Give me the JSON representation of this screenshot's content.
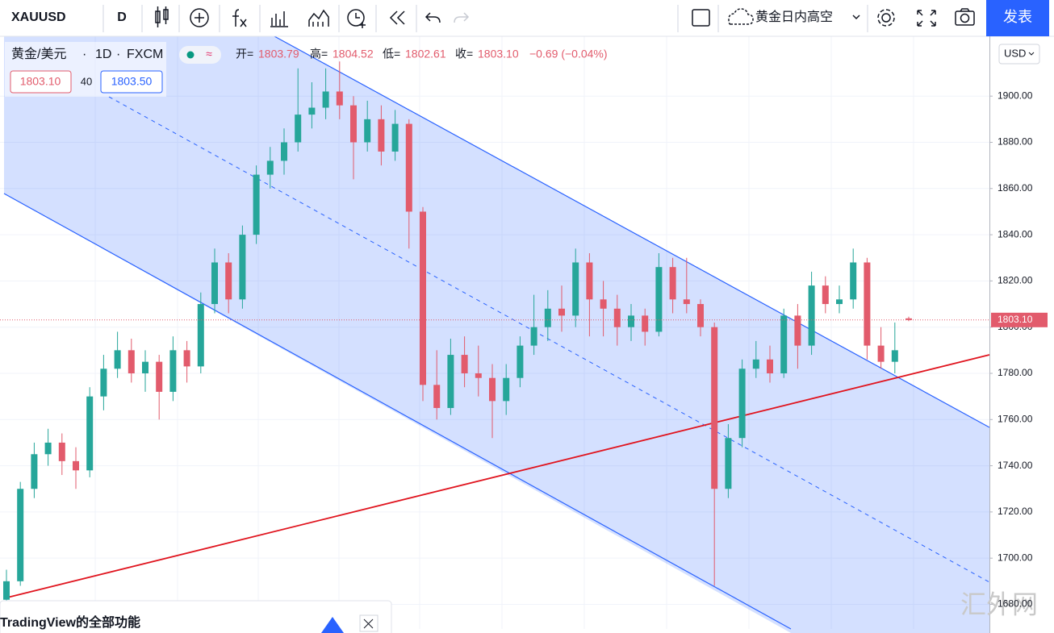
{
  "toolbar": {
    "symbol": "XAUUSD",
    "interval": "D",
    "layout_name": "黄金日内高空",
    "publish": "发表"
  },
  "legend": {
    "name": "黄金/美元",
    "interval": "1D",
    "source": "FXCM",
    "open_label": "开=",
    "open": "1803.79",
    "high_label": "高=",
    "high": "1804.52",
    "low_label": "低=",
    "low": "1802.61",
    "close_label": "收=",
    "close": "1803.10",
    "change": "−0.69 (−0.04%)",
    "sell": "1803.10",
    "spread": "40",
    "buy": "1803.50"
  },
  "currency": "USD",
  "banner": "TradingView的全部功能",
  "watermark": "汇外网",
  "chart_data": {
    "type": "candlestick",
    "up_color": "#26a69a",
    "down_color": "#e25b6c",
    "last_price_label": "1803.10",
    "ylim": [
      1667.6,
      1925.9
    ],
    "yticks": [
      {
        "value": 1900,
        "label": "1900.00"
      },
      {
        "value": 1880,
        "label": "1880.00"
      },
      {
        "value": 1860,
        "label": "1860.00"
      },
      {
        "value": 1840,
        "label": "1840.00"
      },
      {
        "value": 1820,
        "label": "1820.00"
      },
      {
        "value": 1800,
        "label": "1800.00"
      },
      {
        "value": 1780,
        "label": "1780.00"
      },
      {
        "value": 1760,
        "label": "1760.00"
      },
      {
        "value": 1740,
        "label": "1740.00"
      },
      {
        "value": 1720,
        "label": "1720.00"
      },
      {
        "value": 1700,
        "label": "1700.00"
      },
      {
        "value": 1680,
        "label": "1680.00"
      }
    ],
    "grid": true,
    "candles": [
      [
        1682,
        1695,
        1678,
        1690
      ],
      [
        1690,
        1733,
        1688,
        1730
      ],
      [
        1730,
        1750,
        1726,
        1745
      ],
      [
        1745,
        1756,
        1740,
        1750
      ],
      [
        1750,
        1754,
        1736,
        1742
      ],
      [
        1742,
        1748,
        1730,
        1738
      ],
      [
        1738,
        1774,
        1735,
        1770
      ],
      [
        1770,
        1788,
        1764,
        1782
      ],
      [
        1782,
        1798,
        1778,
        1790
      ],
      [
        1790,
        1795,
        1776,
        1780
      ],
      [
        1780,
        1790,
        1772,
        1785
      ],
      [
        1785,
        1788,
        1760,
        1772
      ],
      [
        1772,
        1796,
        1768,
        1790
      ],
      [
        1790,
        1794,
        1776,
        1783
      ],
      [
        1783,
        1815,
        1780,
        1810
      ],
      [
        1810,
        1834,
        1806,
        1828
      ],
      [
        1828,
        1832,
        1806,
        1812
      ],
      [
        1812,
        1844,
        1808,
        1840
      ],
      [
        1840,
        1870,
        1836,
        1866
      ],
      [
        1866,
        1878,
        1860,
        1872
      ],
      [
        1872,
        1886,
        1866,
        1880
      ],
      [
        1880,
        1912,
        1876,
        1892
      ],
      [
        1892,
        1906,
        1886,
        1895
      ],
      [
        1895,
        1912,
        1890,
        1902
      ],
      [
        1902,
        1915,
        1890,
        1896
      ],
      [
        1896,
        1900,
        1864,
        1880
      ],
      [
        1880,
        1898,
        1876,
        1890
      ],
      [
        1890,
        1896,
        1870,
        1876
      ],
      [
        1876,
        1894,
        1872,
        1888
      ],
      [
        1888,
        1890,
        1834,
        1850
      ],
      [
        1850,
        1852,
        1768,
        1775
      ],
      [
        1775,
        1790,
        1760,
        1765
      ],
      [
        1765,
        1795,
        1762,
        1788
      ],
      [
        1788,
        1796,
        1774,
        1780
      ],
      [
        1780,
        1792,
        1770,
        1778
      ],
      [
        1778,
        1784,
        1752,
        1768
      ],
      [
        1768,
        1784,
        1762,
        1778
      ],
      [
        1778,
        1796,
        1774,
        1792
      ],
      [
        1792,
        1814,
        1788,
        1800
      ],
      [
        1800,
        1816,
        1794,
        1808
      ],
      [
        1808,
        1818,
        1798,
        1805
      ],
      [
        1805,
        1834,
        1800,
        1828
      ],
      [
        1828,
        1832,
        1796,
        1812
      ],
      [
        1812,
        1820,
        1796,
        1808
      ],
      [
        1808,
        1814,
        1792,
        1800
      ],
      [
        1800,
        1810,
        1794,
        1805
      ],
      [
        1805,
        1808,
        1792,
        1798
      ],
      [
        1798,
        1832,
        1796,
        1826
      ],
      [
        1826,
        1830,
        1806,
        1812
      ],
      [
        1812,
        1830,
        1806,
        1810
      ],
      [
        1810,
        1812,
        1796,
        1800
      ],
      [
        1800,
        1802,
        1688,
        1730
      ],
      [
        1730,
        1758,
        1726,
        1752
      ],
      [
        1752,
        1786,
        1748,
        1782
      ],
      [
        1782,
        1794,
        1778,
        1786
      ],
      [
        1786,
        1792,
        1776,
        1780
      ],
      [
        1780,
        1808,
        1778,
        1805
      ],
      [
        1805,
        1810,
        1782,
        1792
      ],
      [
        1792,
        1824,
        1788,
        1818
      ],
      [
        1818,
        1822,
        1806,
        1810
      ],
      [
        1810,
        1818,
        1806,
        1812
      ],
      [
        1812,
        1834,
        1808,
        1828
      ],
      [
        1828,
        1830,
        1786,
        1792
      ],
      [
        1792,
        1800,
        1782,
        1785
      ],
      [
        1785,
        1802,
        1780,
        1790
      ],
      [
        1803.79,
        1804.52,
        1802.61,
        1803.1
      ]
    ]
  }
}
